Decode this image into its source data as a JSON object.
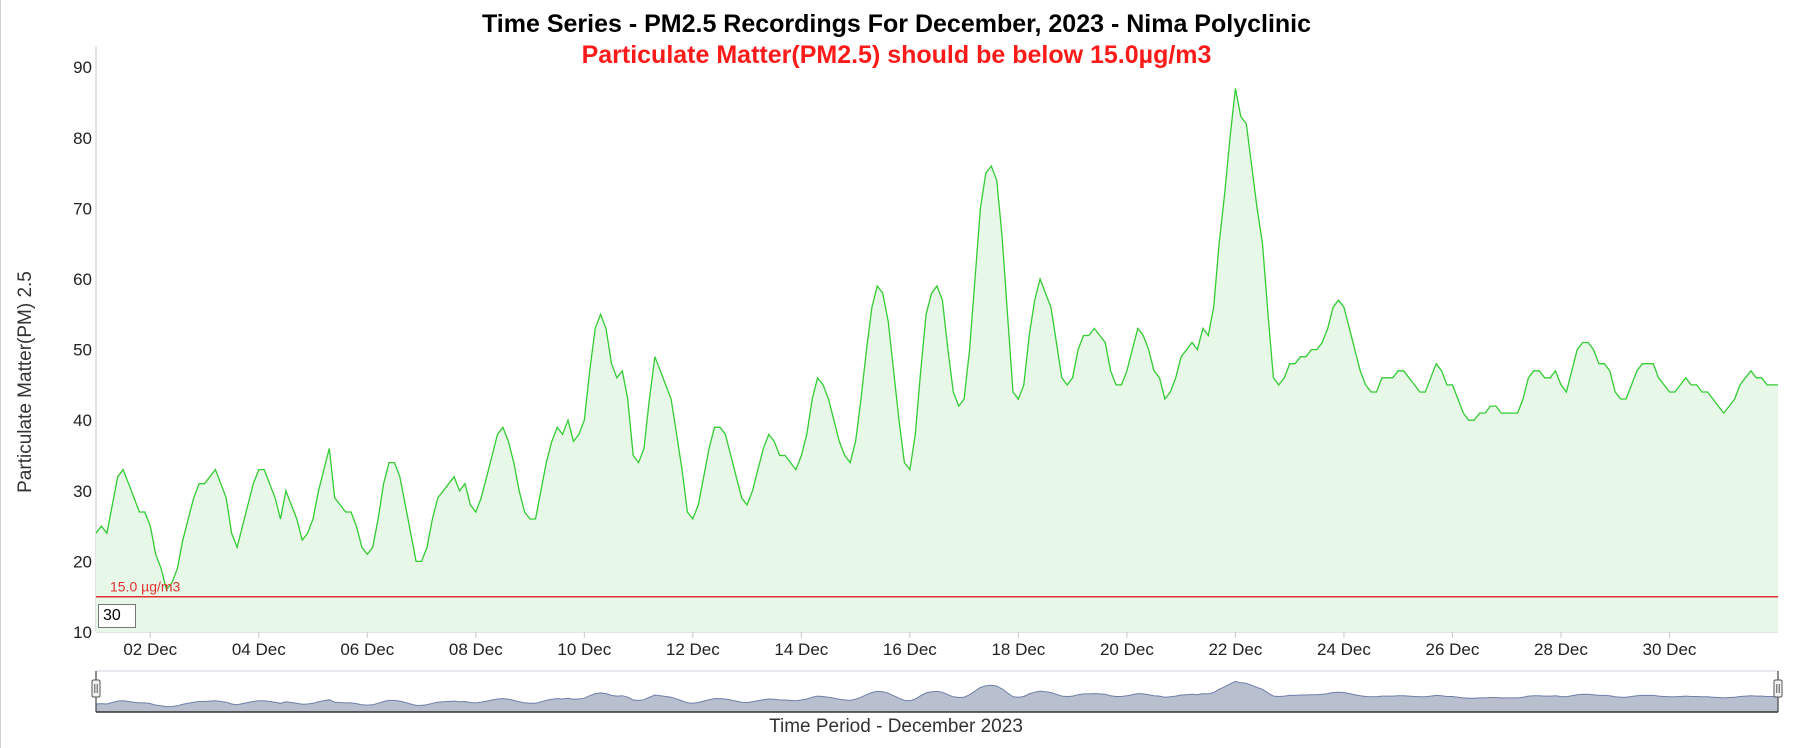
{
  "chart_data": {
    "type": "area",
    "title": "Time Series - PM2.5 Recordings For December, 2023 - Nima Polyclinic",
    "subtitle": "Particulate Matter(PM2.5) should be below 15.0µg/m3",
    "ylabel": "Particulate Matter(PM) 2.5",
    "xlabel": "Time Period - December 2023",
    "ylim": [
      10,
      93
    ],
    "xlim": [
      1.0,
      32.0
    ],
    "y_ticks": [
      10,
      20,
      30,
      40,
      50,
      60,
      70,
      80,
      90
    ],
    "x_ticks": [
      {
        "label": "02 Dec",
        "day": 2
      },
      {
        "label": "04 Dec",
        "day": 4
      },
      {
        "label": "06 Dec",
        "day": 6
      },
      {
        "label": "08 Dec",
        "day": 8
      },
      {
        "label": "10 Dec",
        "day": 10
      },
      {
        "label": "12 Dec",
        "day": 12
      },
      {
        "label": "14 Dec",
        "day": 14
      },
      {
        "label": "16 Dec",
        "day": 16
      },
      {
        "label": "18 Dec",
        "day": 18
      },
      {
        "label": "20 Dec",
        "day": 20
      },
      {
        "label": "22 Dec",
        "day": 22
      },
      {
        "label": "24 Dec",
        "day": 24
      },
      {
        "label": "26 Dec",
        "day": 26
      },
      {
        "label": "28 Dec",
        "day": 28
      },
      {
        "label": "30 Dec",
        "day": 30
      }
    ],
    "threshold": {
      "value": 15.0,
      "label": "15.0 µg/m3",
      "color": "#e03030"
    },
    "series": [
      {
        "color": "#33cc33",
        "fill": "#e8f8e8",
        "points": [
          [
            1.0,
            24
          ],
          [
            1.1,
            25
          ],
          [
            1.2,
            24
          ],
          [
            1.3,
            28
          ],
          [
            1.4,
            32
          ],
          [
            1.5,
            33
          ],
          [
            1.6,
            31
          ],
          [
            1.7,
            29
          ],
          [
            1.8,
            27
          ],
          [
            1.9,
            27
          ],
          [
            2.0,
            25
          ],
          [
            2.1,
            21
          ],
          [
            2.2,
            19
          ],
          [
            2.3,
            16
          ],
          [
            2.4,
            17
          ],
          [
            2.5,
            19
          ],
          [
            2.6,
            23
          ],
          [
            2.7,
            26
          ],
          [
            2.8,
            29
          ],
          [
            2.9,
            31
          ],
          [
            3.0,
            31
          ],
          [
            3.1,
            32
          ],
          [
            3.2,
            33
          ],
          [
            3.3,
            31
          ],
          [
            3.4,
            29
          ],
          [
            3.5,
            24
          ],
          [
            3.6,
            22
          ],
          [
            3.7,
            25
          ],
          [
            3.8,
            28
          ],
          [
            3.9,
            31
          ],
          [
            4.0,
            33
          ],
          [
            4.1,
            33
          ],
          [
            4.2,
            31
          ],
          [
            4.3,
            29
          ],
          [
            4.4,
            26
          ],
          [
            4.5,
            30
          ],
          [
            4.6,
            28
          ],
          [
            4.7,
            26
          ],
          [
            4.8,
            23
          ],
          [
            4.9,
            24
          ],
          [
            5.0,
            26
          ],
          [
            5.1,
            30
          ],
          [
            5.2,
            33
          ],
          [
            5.3,
            36
          ],
          [
            5.4,
            29
          ],
          [
            5.5,
            28
          ],
          [
            5.6,
            27
          ],
          [
            5.7,
            27
          ],
          [
            5.8,
            25
          ],
          [
            5.9,
            22
          ],
          [
            6.0,
            21
          ],
          [
            6.1,
            22
          ],
          [
            6.2,
            26
          ],
          [
            6.3,
            31
          ],
          [
            6.4,
            34
          ],
          [
            6.5,
            34
          ],
          [
            6.6,
            32
          ],
          [
            6.7,
            28
          ],
          [
            6.8,
            24
          ],
          [
            6.9,
            20
          ],
          [
            7.0,
            20
          ],
          [
            7.1,
            22
          ],
          [
            7.2,
            26
          ],
          [
            7.3,
            29
          ],
          [
            7.4,
            30
          ],
          [
            7.5,
            31
          ],
          [
            7.6,
            32
          ],
          [
            7.7,
            30
          ],
          [
            7.8,
            31
          ],
          [
            7.9,
            28
          ],
          [
            8.0,
            27
          ],
          [
            8.1,
            29
          ],
          [
            8.2,
            32
          ],
          [
            8.3,
            35
          ],
          [
            8.4,
            38
          ],
          [
            8.5,
            39
          ],
          [
            8.6,
            37
          ],
          [
            8.7,
            34
          ],
          [
            8.8,
            30
          ],
          [
            8.9,
            27
          ],
          [
            9.0,
            26
          ],
          [
            9.1,
            26
          ],
          [
            9.2,
            30
          ],
          [
            9.3,
            34
          ],
          [
            9.4,
            37
          ],
          [
            9.5,
            39
          ],
          [
            9.6,
            38
          ],
          [
            9.7,
            40
          ],
          [
            9.8,
            37
          ],
          [
            9.9,
            38
          ],
          [
            10.0,
            40
          ],
          [
            10.1,
            47
          ],
          [
            10.2,
            53
          ],
          [
            10.3,
            55
          ],
          [
            10.4,
            53
          ],
          [
            10.5,
            48
          ],
          [
            10.6,
            46
          ],
          [
            10.7,
            47
          ],
          [
            10.8,
            43
          ],
          [
            10.9,
            35
          ],
          [
            11.0,
            34
          ],
          [
            11.1,
            36
          ],
          [
            11.2,
            43
          ],
          [
            11.3,
            49
          ],
          [
            11.4,
            47
          ],
          [
            11.5,
            45
          ],
          [
            11.6,
            43
          ],
          [
            11.7,
            38
          ],
          [
            11.8,
            33
          ],
          [
            11.9,
            27
          ],
          [
            12.0,
            26
          ],
          [
            12.1,
            28
          ],
          [
            12.2,
            32
          ],
          [
            12.3,
            36
          ],
          [
            12.4,
            39
          ],
          [
            12.5,
            39
          ],
          [
            12.6,
            38
          ],
          [
            12.7,
            35
          ],
          [
            12.8,
            32
          ],
          [
            12.9,
            29
          ],
          [
            13.0,
            28
          ],
          [
            13.1,
            30
          ],
          [
            13.2,
            33
          ],
          [
            13.3,
            36
          ],
          [
            13.4,
            38
          ],
          [
            13.5,
            37
          ],
          [
            13.6,
            35
          ],
          [
            13.7,
            35
          ],
          [
            13.8,
            34
          ],
          [
            13.9,
            33
          ],
          [
            14.0,
            35
          ],
          [
            14.1,
            38
          ],
          [
            14.2,
            43
          ],
          [
            14.3,
            46
          ],
          [
            14.4,
            45
          ],
          [
            14.5,
            43
          ],
          [
            14.6,
            40
          ],
          [
            14.7,
            37
          ],
          [
            14.8,
            35
          ],
          [
            14.9,
            34
          ],
          [
            15.0,
            37
          ],
          [
            15.1,
            43
          ],
          [
            15.2,
            50
          ],
          [
            15.3,
            56
          ],
          [
            15.4,
            59
          ],
          [
            15.5,
            58
          ],
          [
            15.6,
            54
          ],
          [
            15.7,
            47
          ],
          [
            15.8,
            40
          ],
          [
            15.9,
            34
          ],
          [
            16.0,
            33
          ],
          [
            16.1,
            38
          ],
          [
            16.2,
            47
          ],
          [
            16.3,
            55
          ],
          [
            16.4,
            58
          ],
          [
            16.5,
            59
          ],
          [
            16.6,
            57
          ],
          [
            16.7,
            50
          ],
          [
            16.8,
            44
          ],
          [
            16.9,
            42
          ],
          [
            17.0,
            43
          ],
          [
            17.1,
            50
          ],
          [
            17.2,
            60
          ],
          [
            17.3,
            70
          ],
          [
            17.4,
            75
          ],
          [
            17.5,
            76
          ],
          [
            17.6,
            74
          ],
          [
            17.7,
            66
          ],
          [
            17.8,
            55
          ],
          [
            17.9,
            44
          ],
          [
            18.0,
            43
          ],
          [
            18.1,
            45
          ],
          [
            18.2,
            52
          ],
          [
            18.3,
            57
          ],
          [
            18.4,
            60
          ],
          [
            18.5,
            58
          ],
          [
            18.6,
            56
          ],
          [
            18.7,
            51
          ],
          [
            18.8,
            46
          ],
          [
            18.9,
            45
          ],
          [
            19.0,
            46
          ],
          [
            19.1,
            50
          ],
          [
            19.2,
            52
          ],
          [
            19.3,
            52
          ],
          [
            19.4,
            53
          ],
          [
            19.5,
            52
          ],
          [
            19.6,
            51
          ],
          [
            19.7,
            47
          ],
          [
            19.8,
            45
          ],
          [
            19.9,
            45
          ],
          [
            20.0,
            47
          ],
          [
            20.1,
            50
          ],
          [
            20.2,
            53
          ],
          [
            20.3,
            52
          ],
          [
            20.4,
            50
          ],
          [
            20.5,
            47
          ],
          [
            20.6,
            46
          ],
          [
            20.7,
            43
          ],
          [
            20.8,
            44
          ],
          [
            20.9,
            46
          ],
          [
            21.0,
            49
          ],
          [
            21.1,
            50
          ],
          [
            21.2,
            51
          ],
          [
            21.3,
            50
          ],
          [
            21.4,
            53
          ],
          [
            21.5,
            52
          ],
          [
            21.6,
            56
          ],
          [
            21.7,
            65
          ],
          [
            21.8,
            72
          ],
          [
            21.9,
            80
          ],
          [
            22.0,
            87
          ],
          [
            22.1,
            83
          ],
          [
            22.2,
            82
          ],
          [
            22.3,
            76
          ],
          [
            22.4,
            70
          ],
          [
            22.5,
            65
          ],
          [
            22.6,
            55
          ],
          [
            22.7,
            46
          ],
          [
            22.8,
            45
          ],
          [
            22.9,
            46
          ],
          [
            23.0,
            48
          ],
          [
            23.1,
            48
          ],
          [
            23.2,
            49
          ],
          [
            23.3,
            49
          ],
          [
            23.4,
            50
          ],
          [
            23.5,
            50
          ],
          [
            23.6,
            51
          ],
          [
            23.7,
            53
          ],
          [
            23.8,
            56
          ],
          [
            23.9,
            57
          ],
          [
            24.0,
            56
          ],
          [
            24.1,
            53
          ],
          [
            24.2,
            50
          ],
          [
            24.3,
            47
          ],
          [
            24.4,
            45
          ],
          [
            24.5,
            44
          ],
          [
            24.6,
            44
          ],
          [
            24.7,
            46
          ],
          [
            24.8,
            46
          ],
          [
            24.9,
            46
          ],
          [
            25.0,
            47
          ],
          [
            25.1,
            47
          ],
          [
            25.2,
            46
          ],
          [
            25.3,
            45
          ],
          [
            25.4,
            44
          ],
          [
            25.5,
            44
          ],
          [
            25.6,
            46
          ],
          [
            25.7,
            48
          ],
          [
            25.8,
            47
          ],
          [
            25.9,
            45
          ],
          [
            26.0,
            45
          ],
          [
            26.1,
            43
          ],
          [
            26.2,
            41
          ],
          [
            26.3,
            40
          ],
          [
            26.4,
            40
          ],
          [
            26.5,
            41
          ],
          [
            26.6,
            41
          ],
          [
            26.7,
            42
          ],
          [
            26.8,
            42
          ],
          [
            26.9,
            41
          ],
          [
            27.0,
            41
          ],
          [
            27.1,
            41
          ],
          [
            27.2,
            41
          ],
          [
            27.3,
            43
          ],
          [
            27.4,
            46
          ],
          [
            27.5,
            47
          ],
          [
            27.6,
            47
          ],
          [
            27.7,
            46
          ],
          [
            27.8,
            46
          ],
          [
            27.9,
            47
          ],
          [
            28.0,
            45
          ],
          [
            28.1,
            44
          ],
          [
            28.2,
            47
          ],
          [
            28.3,
            50
          ],
          [
            28.4,
            51
          ],
          [
            28.5,
            51
          ],
          [
            28.6,
            50
          ],
          [
            28.7,
            48
          ],
          [
            28.8,
            48
          ],
          [
            28.9,
            47
          ],
          [
            29.0,
            44
          ],
          [
            29.1,
            43
          ],
          [
            29.2,
            43
          ],
          [
            29.3,
            45
          ],
          [
            29.4,
            47
          ],
          [
            29.5,
            48
          ],
          [
            29.6,
            48
          ],
          [
            29.7,
            48
          ],
          [
            29.8,
            46
          ],
          [
            29.9,
            45
          ],
          [
            30.0,
            44
          ],
          [
            30.1,
            44
          ],
          [
            30.2,
            45
          ],
          [
            30.3,
            46
          ],
          [
            30.4,
            45
          ],
          [
            30.5,
            45
          ],
          [
            30.6,
            44
          ],
          [
            30.7,
            44
          ],
          [
            30.8,
            43
          ],
          [
            30.9,
            42
          ],
          [
            31.0,
            41
          ],
          [
            31.1,
            42
          ],
          [
            31.2,
            43
          ],
          [
            31.3,
            45
          ],
          [
            31.4,
            46
          ],
          [
            31.5,
            47
          ],
          [
            31.6,
            46
          ],
          [
            31.7,
            46
          ],
          [
            31.8,
            45
          ],
          [
            32.0,
            45
          ]
        ]
      }
    ],
    "grid": false,
    "navigator_colors": {
      "line": "#6f7fa8",
      "fill": "#b8c0d0"
    },
    "window_value": "30"
  }
}
